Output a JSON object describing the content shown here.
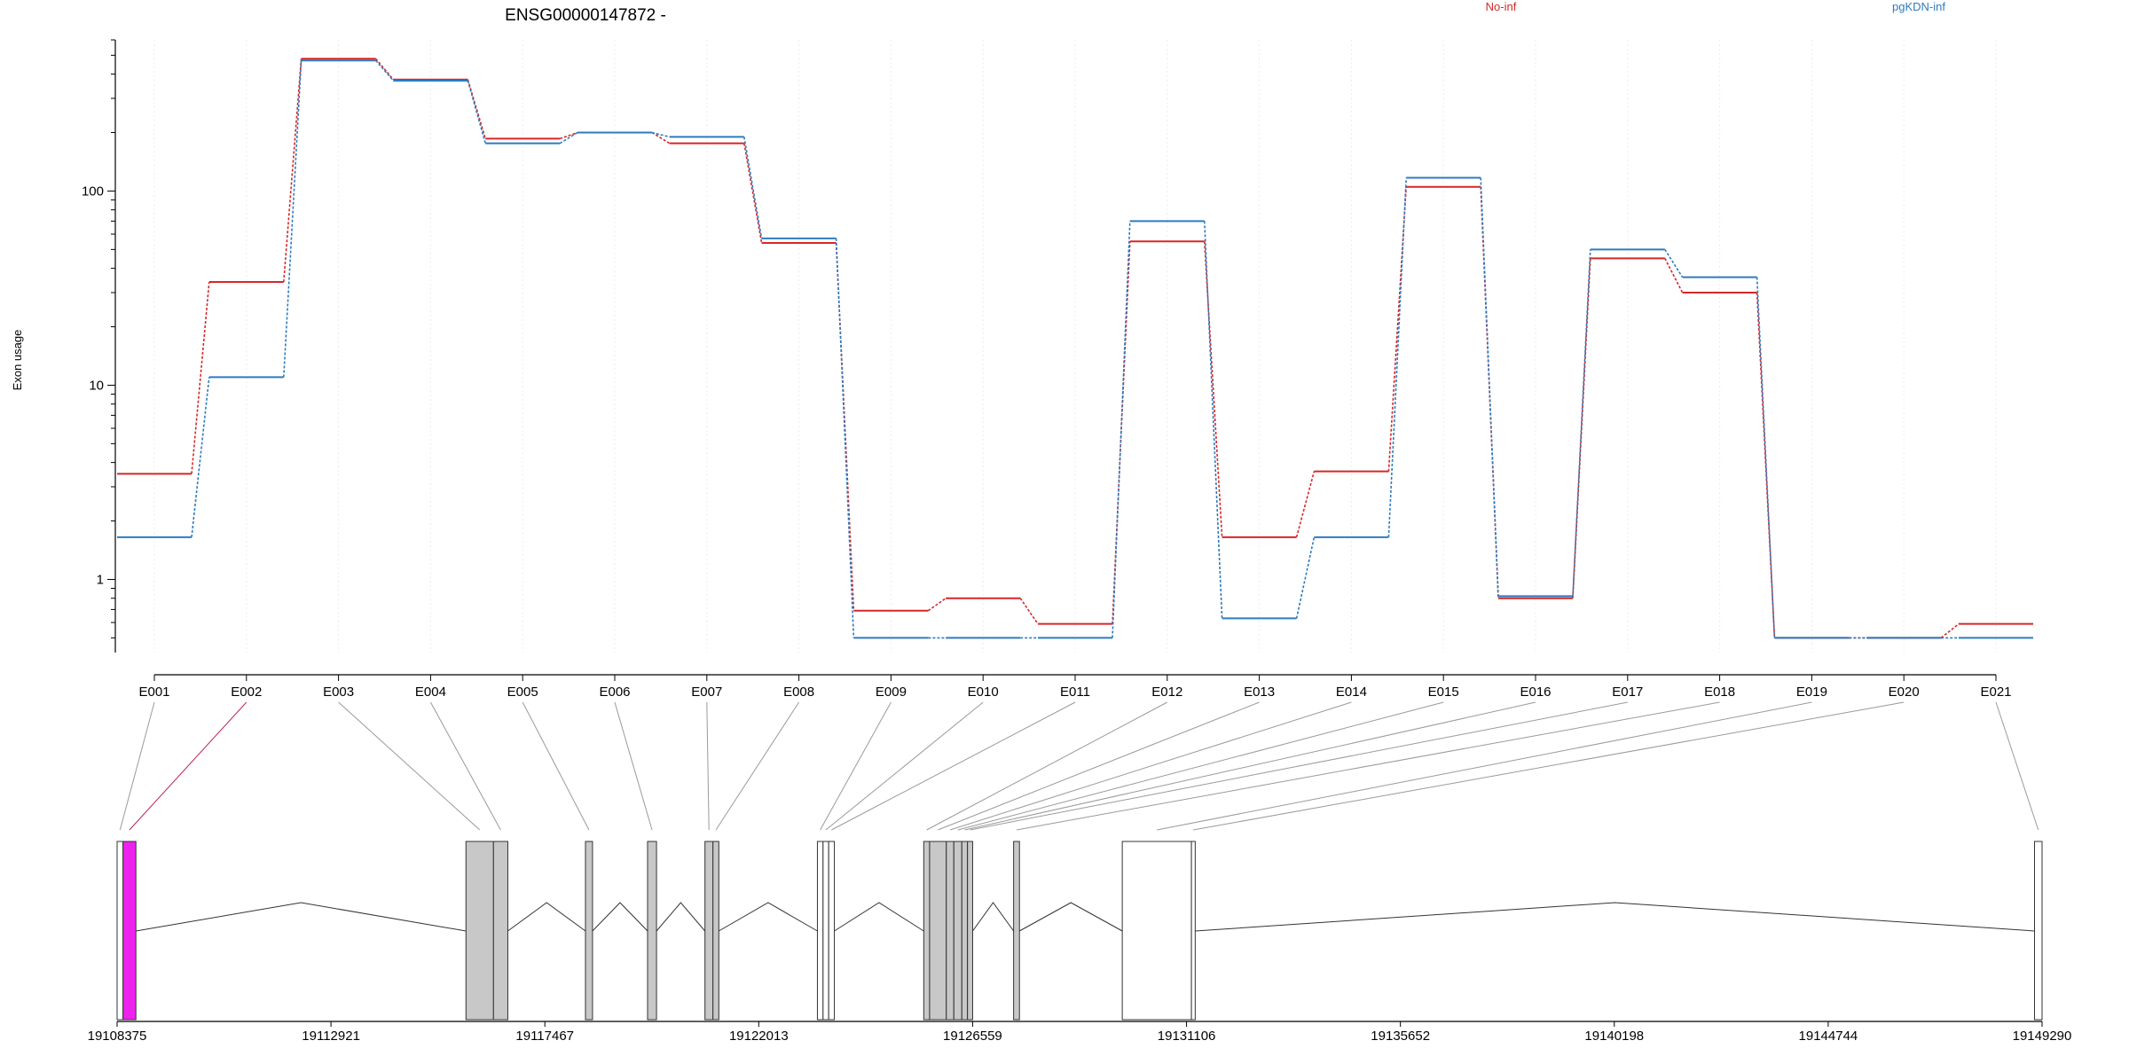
{
  "chart_data": [
    {
      "type": "line",
      "title": "ENSG00000147872 -",
      "ylabel": "Exon usage",
      "xlabel": "",
      "scale": "log",
      "ylim": [
        0.42,
        600
      ],
      "yticks": [
        1,
        10,
        100
      ],
      "ytick_labels": [
        "1",
        "10",
        "100"
      ],
      "grid": "vertical, faint",
      "legend": "top-right",
      "categories": [
        "E001",
        "E002",
        "E003",
        "E004",
        "E005",
        "E006",
        "E007",
        "E008",
        "E009",
        "E010",
        "E011",
        "E012",
        "E013",
        "E014",
        "E015",
        "E016",
        "E017",
        "E018",
        "E019",
        "E020",
        "E021"
      ],
      "series": [
        {
          "name": "No-inf",
          "color": "#d62728",
          "values": [
            3.5,
            34,
            480,
            375,
            186,
            200,
            176,
            54,
            0.69,
            0.8,
            0.59,
            55,
            1.65,
            3.6,
            105,
            0.8,
            45,
            30,
            0.5,
            0.5,
            0.59
          ]
        },
        {
          "name": "pgKDN-inf",
          "color": "#2e7bbf",
          "values": [
            1.65,
            11,
            470,
            370,
            176,
            200,
            190,
            57,
            0.5,
            0.5,
            0.5,
            70,
            0.63,
            1.65,
            117,
            0.82,
            50,
            36,
            0.5,
            0.5,
            0.5
          ]
        }
      ]
    },
    {
      "type": "gene-model",
      "range": [
        19108375,
        19149290
      ],
      "xtick_values": [
        19108375,
        19112921,
        19117467,
        19122013,
        19126559,
        19131106,
        19135652,
        19140198,
        19144744,
        19149290
      ],
      "xtick_labels": [
        "19108375",
        "19112921",
        "19117467",
        "19122013",
        "19126559",
        "19131106",
        "19135652",
        "19140198",
        "19144744",
        "19149290"
      ],
      "highlight_color": "#ee22ee",
      "exons": [
        {
          "id": "E001",
          "start": 19108375,
          "end": 19108500,
          "fill": "white"
        },
        {
          "id": "E002",
          "start": 19108500,
          "end": 19108775,
          "fill": "magenta"
        },
        {
          "id": "E003",
          "start": 19115790,
          "end": 19116375,
          "fill": "gray"
        },
        {
          "id": "E004",
          "start": 19116375,
          "end": 19116680,
          "fill": "gray"
        },
        {
          "id": "E005",
          "start": 19118330,
          "end": 19118480,
          "fill": "gray"
        },
        {
          "id": "E006",
          "start": 19119650,
          "end": 19119840,
          "fill": "gray"
        },
        {
          "id": "E007",
          "start": 19120870,
          "end": 19121040,
          "fill": "gray"
        },
        {
          "id": "E008",
          "start": 19121040,
          "end": 19121165,
          "fill": "gray"
        },
        {
          "id": "E009",
          "start": 19123260,
          "end": 19123380,
          "fill": "white"
        },
        {
          "id": "E010",
          "start": 19123380,
          "end": 19123500,
          "fill": "white"
        },
        {
          "id": "E011",
          "start": 19123500,
          "end": 19123620,
          "fill": "white"
        },
        {
          "id": "E012",
          "start": 19125520,
          "end": 19125645,
          "fill": "gray"
        },
        {
          "id": "E013",
          "start": 19125645,
          "end": 19126000,
          "fill": "gray"
        },
        {
          "id": "E014",
          "start": 19126000,
          "end": 19126160,
          "fill": "gray"
        },
        {
          "id": "E015",
          "start": 19126160,
          "end": 19126330,
          "fill": "gray"
        },
        {
          "id": "E016",
          "start": 19126330,
          "end": 19126450,
          "fill": "gray"
        },
        {
          "id": "E017",
          "start": 19126450,
          "end": 19126560,
          "fill": "gray"
        },
        {
          "id": "E018",
          "start": 19127430,
          "end": 19127555,
          "fill": "gray"
        },
        {
          "id": "E019",
          "start": 19129740,
          "end": 19131210,
          "fill": "white"
        },
        {
          "id": "E020",
          "start": 19131210,
          "end": 19131290,
          "fill": "white"
        },
        {
          "id": "E021",
          "start": 19149130,
          "end": 19149290,
          "fill": "white"
        }
      ]
    }
  ],
  "legend": {
    "series_a": "No-inf",
    "series_b": "pgKDN-inf"
  }
}
